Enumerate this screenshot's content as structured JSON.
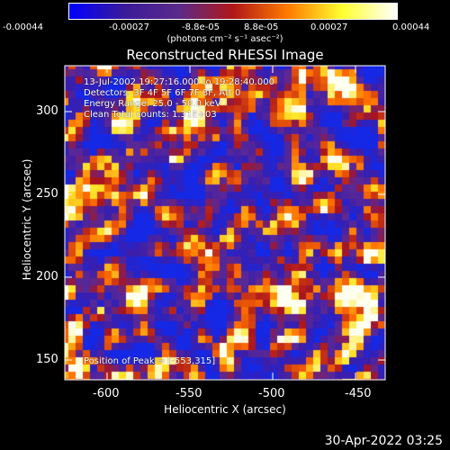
{
  "colorbar": {
    "ticks": [
      "-0.00044",
      "-0.00027",
      "-8.8e-05",
      "8.8e-05",
      "0.00027",
      "0.00044"
    ],
    "units": "(photons cm⁻² s⁻¹ asec⁻²)",
    "colors": [
      "#0000ff",
      "#3a1a9a",
      "#5a2a8a",
      "#b01818",
      "#ff7a00",
      "#ffff30",
      "#ffffff"
    ]
  },
  "title": "Reconstructed RHESSI Image",
  "annotations": {
    "line1": "13-Jul-2002 19:27:16.000 to 19:28:40.000",
    "line2": "Detectors: 3F 4F 5F 6F 7F 8F, Att 0",
    "line3": "Energy Range: 25.0 - 50.0 keV",
    "line4": "Clean     Total counts: 1.31E+03",
    "peak": "Position of Peak = [-553,315]"
  },
  "axes": {
    "x_title": "Heliocentric X (arcsec)",
    "y_title": "Heliocentric Y (arcsec)",
    "x_ticks": [
      "-600",
      "-550",
      "-500",
      "-450"
    ],
    "y_ticks": [
      "300",
      "250",
      "200",
      "150"
    ],
    "xlim": [
      -620,
      -430
    ],
    "ylim": [
      135,
      325
    ]
  },
  "footer": "30-Apr-2022 03:25"
}
